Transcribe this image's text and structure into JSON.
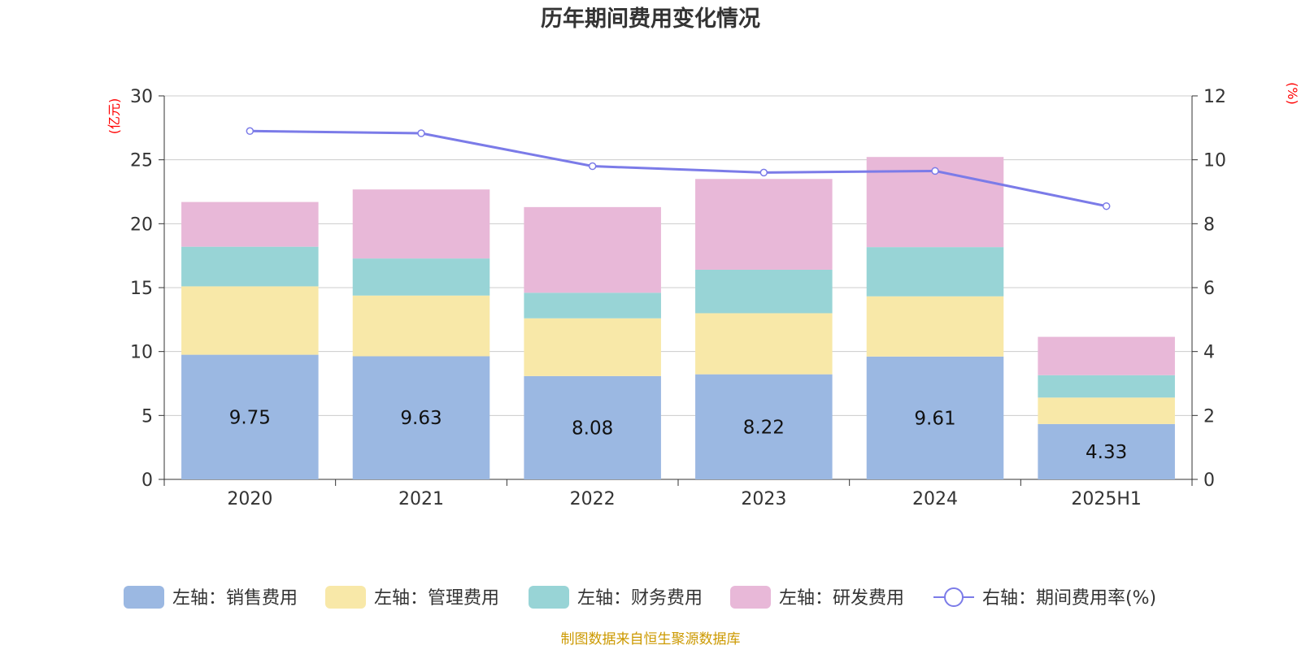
{
  "chart_data": {
    "type": "bar",
    "stacked": true,
    "title": "历年期间费用变化情况",
    "categories": [
      "2020",
      "2021",
      "2022",
      "2023",
      "2024",
      "2025H1"
    ],
    "left_axis": {
      "unit": "(亿元)",
      "ylim": [
        0,
        30
      ],
      "ticks": [
        "0",
        "5",
        "10",
        "15",
        "20",
        "25",
        "30"
      ]
    },
    "right_axis": {
      "unit": "(%)",
      "ylim": [
        0,
        12
      ],
      "ticks": [
        "0",
        "2",
        "4",
        "6",
        "8",
        "10",
        "12"
      ]
    },
    "series": [
      {
        "name": "左轴：销售费用",
        "type": "bar",
        "axis": "left",
        "color": "#9bb8e2",
        "values": [
          9.75,
          9.63,
          8.08,
          8.22,
          9.61,
          4.33
        ],
        "show_labels": true
      },
      {
        "name": "左轴：管理费用",
        "type": "bar",
        "axis": "left",
        "color": "#f8e8a8",
        "values": [
          5.35,
          4.75,
          4.52,
          4.78,
          4.71,
          2.07
        ],
        "show_labels": false
      },
      {
        "name": "左轴：财务费用",
        "type": "bar",
        "axis": "left",
        "color": "#98d4d6",
        "values": [
          3.1,
          2.9,
          2.0,
          3.4,
          3.85,
          1.75
        ],
        "show_labels": false
      },
      {
        "name": "左轴：研发费用",
        "type": "bar",
        "axis": "left",
        "color": "#e8b8d8",
        "values": [
          3.5,
          5.4,
          6.7,
          7.1,
          7.05,
          3.0
        ],
        "show_labels": false
      },
      {
        "name": "右轴：期间费用率(%)",
        "type": "line",
        "axis": "right",
        "color": "#7b7be8",
        "values": [
          10.9,
          10.83,
          9.8,
          9.6,
          9.65,
          8.55
        ]
      }
    ],
    "grid": true,
    "legend_position": "bottom"
  },
  "source_note": "制图数据来自恒生聚源数据库"
}
